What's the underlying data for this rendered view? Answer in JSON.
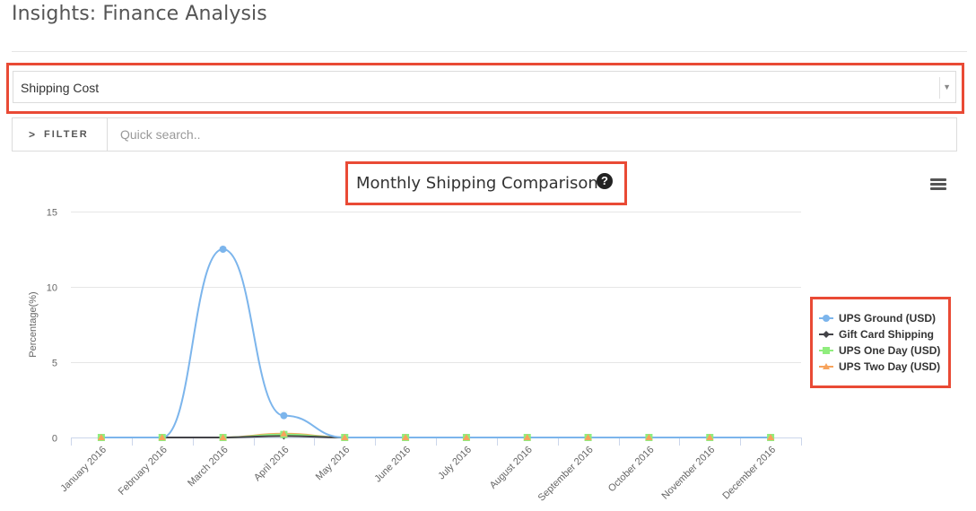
{
  "page": {
    "title": "Insights: Finance Analysis"
  },
  "metric_select": {
    "value": "Shipping Cost"
  },
  "filter": {
    "button_label": "FILTER",
    "search_placeholder": "Quick search.."
  },
  "chart_header": {
    "title": "Monthly Shipping Comparison"
  },
  "chart_data": {
    "type": "line",
    "title": "Monthly Shipping Comparison",
    "xlabel": "",
    "ylabel": "Percentage(%)",
    "ylim": [
      0,
      15
    ],
    "yticks": [
      0,
      5,
      10,
      15
    ],
    "grid": true,
    "legend_position": "right",
    "categories": [
      "January 2016",
      "February 2016",
      "March 2016",
      "April 2016",
      "May 2016",
      "June 2016",
      "July 2016",
      "August 2016",
      "September 2016",
      "October 2016",
      "November 2016",
      "December 2016"
    ],
    "series": [
      {
        "name": "UPS Ground (USD)",
        "color": "#7cb5ec",
        "marker": "circle",
        "values": [
          0,
          0,
          12.5,
          1.45,
          0,
          0,
          0,
          0,
          0,
          0,
          0,
          0
        ]
      },
      {
        "name": "Gift Card Shipping",
        "color": "#434348",
        "marker": "diamond",
        "values": [
          0,
          0,
          0,
          0.1,
          0,
          0,
          0,
          0,
          0,
          0,
          0,
          0
        ]
      },
      {
        "name": "UPS One Day (USD)",
        "color": "#90ed7d",
        "marker": "square",
        "values": [
          0,
          0,
          0,
          0.2,
          0,
          0,
          0,
          0,
          0,
          0,
          0,
          0
        ]
      },
      {
        "name": "UPS Two Day (USD)",
        "color": "#f7a35c",
        "marker": "triangle",
        "values": [
          0,
          0,
          0,
          0.25,
          0,
          0,
          0,
          0,
          0,
          0,
          0,
          0
        ]
      }
    ]
  }
}
